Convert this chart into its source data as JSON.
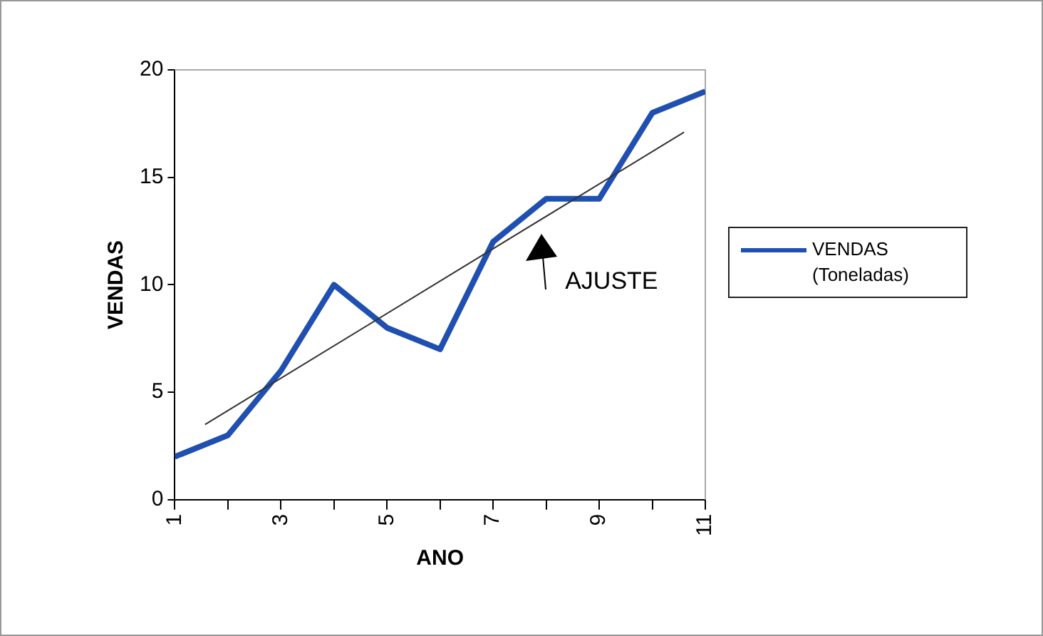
{
  "chart_data": {
    "type": "line",
    "xlabel": "ANO",
    "ylabel": "VENDAS",
    "x": [
      1,
      2,
      3,
      4,
      5,
      6,
      7,
      8,
      9,
      10,
      11
    ],
    "series": [
      {
        "name": "VENDAS (Toneladas)",
        "color": "#1f4fb0",
        "values": [
          2,
          3,
          6,
          10,
          8,
          7,
          12,
          14,
          14,
          18,
          19
        ]
      },
      {
        "type": "line",
        "color": "#333333",
        "x": [
          1.57,
          10.6
        ],
        "values": [
          3.5,
          17.1
        ]
      }
    ],
    "xlim": [
      1,
      11
    ],
    "xticks": [
      1,
      {
        "value": 2,
        "label": null
      },
      3,
      {
        "value": 4,
        "label": null
      },
      5,
      {
        "value": 6,
        "label": null
      },
      7,
      {
        "value": 8,
        "label": null
      },
      9,
      {
        "value": 10,
        "label": null
      },
      11
    ],
    "ylim": [
      0,
      20
    ],
    "yticks": [
      0,
      5,
      10,
      15,
      20
    ],
    "annotations": [
      {
        "text": "AJUSTE",
        "x": 7.9,
        "y": 12.8
      }
    ],
    "grid": false,
    "legend": "right",
    "marker": "none",
    "line_style": "solid"
  }
}
